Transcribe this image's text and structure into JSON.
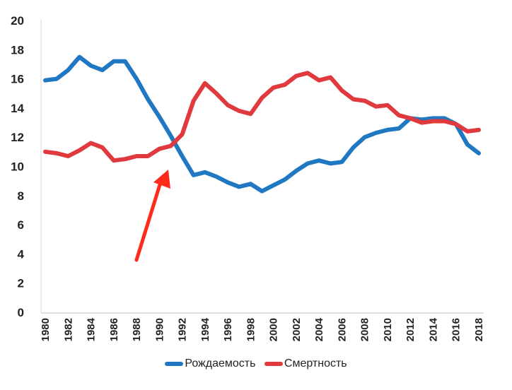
{
  "chart_data": {
    "type": "line",
    "title": "",
    "xlabel": "",
    "ylabel": "",
    "ylim": [
      0,
      20
    ],
    "yticks": [
      0,
      2,
      4,
      6,
      8,
      10,
      12,
      14,
      16,
      18,
      20
    ],
    "xlim": [
      1980,
      2018
    ],
    "xticks": [
      1980,
      1982,
      1984,
      1986,
      1988,
      1990,
      1992,
      1994,
      1996,
      1998,
      2000,
      2002,
      2004,
      2006,
      2008,
      2010,
      2012,
      2014,
      2016,
      2018
    ],
    "x": [
      1980,
      1981,
      1982,
      1983,
      1984,
      1985,
      1986,
      1987,
      1988,
      1989,
      1990,
      1991,
      1992,
      1993,
      1994,
      1995,
      1996,
      1997,
      1998,
      1999,
      2000,
      2001,
      2002,
      2003,
      2004,
      2005,
      2006,
      2007,
      2008,
      2009,
      2010,
      2011,
      2012,
      2013,
      2014,
      2015,
      2016,
      2017,
      2018
    ],
    "series": [
      {
        "name": "Рождаемость",
        "color": "#1f78c1",
        "values": [
          15.9,
          16.0,
          16.6,
          17.5,
          16.9,
          16.6,
          17.2,
          17.2,
          16.0,
          14.6,
          13.4,
          12.1,
          10.7,
          9.4,
          9.6,
          9.3,
          8.9,
          8.6,
          8.8,
          8.3,
          8.7,
          9.1,
          9.7,
          10.2,
          10.4,
          10.2,
          10.3,
          11.3,
          12.0,
          12.3,
          12.5,
          12.6,
          13.3,
          13.2,
          13.3,
          13.3,
          12.9,
          11.5,
          10.9
        ]
      },
      {
        "name": "Смертность",
        "color": "#e0393e",
        "values": [
          11.0,
          10.9,
          10.7,
          11.1,
          11.6,
          11.3,
          10.4,
          10.5,
          10.7,
          10.7,
          11.2,
          11.4,
          12.2,
          14.5,
          15.7,
          15.0,
          14.2,
          13.8,
          13.6,
          14.7,
          15.4,
          15.6,
          16.2,
          16.4,
          15.9,
          16.1,
          15.2,
          14.6,
          14.5,
          14.1,
          14.2,
          13.5,
          13.3,
          13.0,
          13.1,
          13.1,
          12.9,
          12.4,
          12.5
        ]
      }
    ],
    "legend": "bottom-center",
    "grid": false,
    "annotation": "red-arrow"
  }
}
